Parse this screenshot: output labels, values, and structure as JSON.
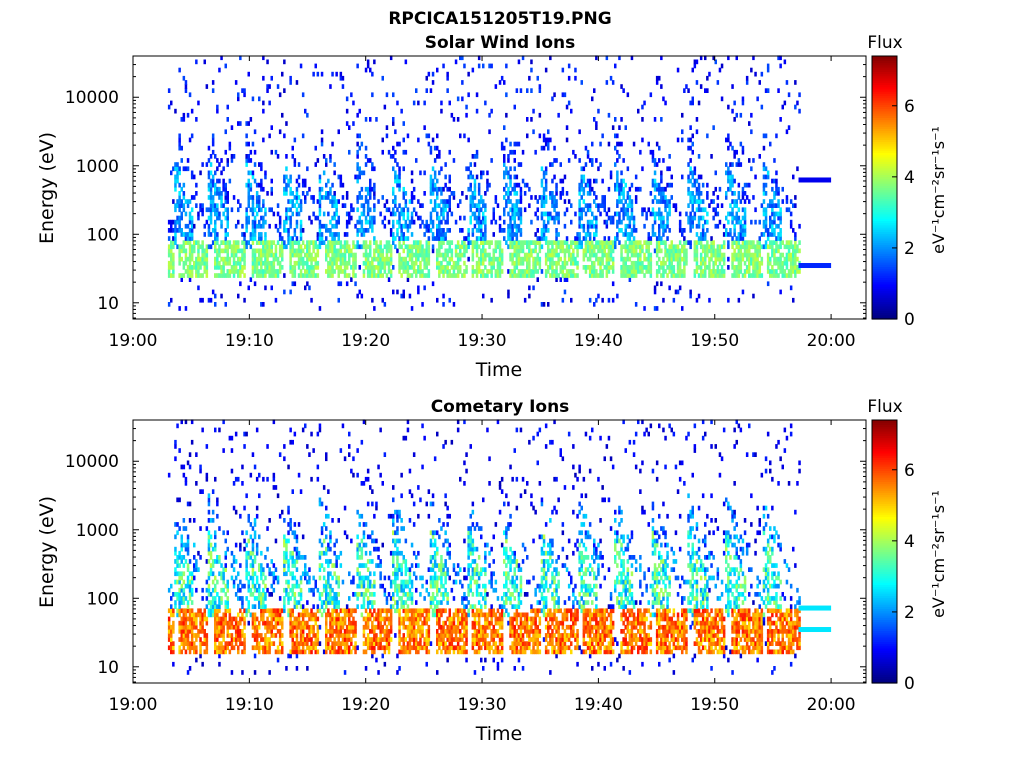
{
  "figure_title": "RPCICA151205T19.PNG",
  "colorbar": {
    "title": "Flux",
    "label": "eV⁻¹cm⁻²sr⁻¹s⁻¹",
    "range": [
      0,
      7.4
    ],
    "ticks": [
      "0",
      "2",
      "4",
      "6"
    ],
    "colormap": "jet"
  },
  "chart_data": [
    {
      "type": "heatmap",
      "title": "Solar Wind Ions",
      "xlabel": "Time",
      "ylabel": "Energy (eV)",
      "x_ticks": [
        "19:00",
        "19:10",
        "19:20",
        "19:30",
        "19:40",
        "19:50",
        "20:00"
      ],
      "y_ticks": [
        "10",
        "100",
        "1000",
        "10000"
      ],
      "xlim_minutes": [
        0,
        63
      ],
      "ylim_eV": [
        5.8,
        40000
      ],
      "y_scale": "log",
      "grid": false,
      "data_span_minutes": [
        3,
        57.2
      ],
      "sweep_start_minutes": [
        3.4,
        6.4,
        9.6,
        12.8,
        15.9,
        19.1,
        22.2,
        25.4,
        28.6,
        31.7,
        34.9,
        38.1,
        41.3,
        44.4,
        47.6,
        50.8,
        54.0
      ],
      "peak_energy_eV": [
        30,
        60
      ],
      "peak_flux": 4.2,
      "background_flux": 1.0,
      "trailing_lines": [
        {
          "start_minutes": 57.2,
          "end_minutes": 60,
          "energy_eV": 620,
          "flux": 0.8
        },
        {
          "start_minutes": 57.2,
          "end_minutes": 60,
          "energy_eV": 35,
          "flux": 1.2
        }
      ]
    },
    {
      "type": "heatmap",
      "title": "Cometary Ions",
      "xlabel": "Time",
      "ylabel": "Energy (eV)",
      "x_ticks": [
        "19:00",
        "19:10",
        "19:20",
        "19:30",
        "19:40",
        "19:50",
        "20:00"
      ],
      "y_ticks": [
        "10",
        "100",
        "1000",
        "10000"
      ],
      "xlim_minutes": [
        0,
        63
      ],
      "ylim_eV": [
        5.8,
        40000
      ],
      "y_scale": "log",
      "grid": false,
      "data_span_minutes": [
        3,
        57.2
      ],
      "sweep_start_minutes": [
        3.4,
        6.4,
        9.6,
        12.8,
        15.9,
        19.1,
        22.2,
        25.4,
        28.6,
        31.7,
        34.9,
        38.1,
        41.3,
        44.4,
        47.6,
        50.8,
        54.0
      ],
      "peak_energy_eV": [
        20,
        50
      ],
      "peak_flux": 6.4,
      "background_flux": 0.8,
      "trailing_lines": [
        {
          "start_minutes": 57.2,
          "end_minutes": 60,
          "energy_eV": 72,
          "flux": 2.6
        },
        {
          "start_minutes": 57.2,
          "end_minutes": 60,
          "energy_eV": 35,
          "flux": 2.6
        }
      ]
    }
  ]
}
